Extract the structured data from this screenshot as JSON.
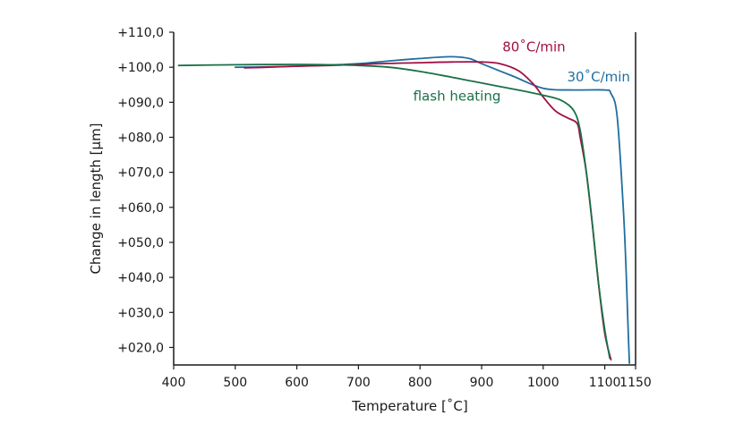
{
  "chart_data": {
    "type": "line",
    "xlabel": "Temperature [˚C]",
    "ylabel": "Change in length [µm]",
    "xlim": [
      400,
      1150
    ],
    "ylim": [
      15,
      110
    ],
    "x_ticks": [
      400,
      500,
      600,
      700,
      800,
      900,
      1000,
      1100,
      1150
    ],
    "x_tick_labels": [
      "400",
      "500",
      "600",
      "700",
      "800",
      "900",
      "1000",
      "1100",
      "1150"
    ],
    "y_ticks": [
      20,
      30,
      40,
      50,
      60,
      70,
      80,
      90,
      100,
      110
    ],
    "y_tick_labels": [
      "+020,0",
      "+030,0",
      "+040,0",
      "+050,0",
      "+060,0",
      "+070,0",
      "+080,0",
      "+090,0",
      "+100,0",
      "+110,0"
    ],
    "grid": false,
    "series": [
      {
        "name": "30˚C/min",
        "color": "#1f6fa0",
        "points": [
          [
            500,
            100.0
          ],
          [
            550,
            100.1
          ],
          [
            600,
            100.3
          ],
          [
            650,
            100.6
          ],
          [
            700,
            101.0
          ],
          [
            750,
            101.8
          ],
          [
            800,
            102.5
          ],
          [
            850,
            103.0
          ],
          [
            880,
            102.5
          ],
          [
            900,
            101.0
          ],
          [
            950,
            97.5
          ],
          [
            1000,
            94.0
          ],
          [
            1050,
            93.5
          ],
          [
            1100,
            93.5
          ],
          [
            1110,
            92.5
          ],
          [
            1120,
            86.0
          ],
          [
            1130,
            60.0
          ],
          [
            1135,
            40.0
          ],
          [
            1138,
            25.0
          ],
          [
            1140,
            15.5
          ]
        ]
      },
      {
        "name": "80˚C/min",
        "color": "#a01045",
        "points": [
          [
            515,
            99.8
          ],
          [
            550,
            100.0
          ],
          [
            600,
            100.3
          ],
          [
            650,
            100.5
          ],
          [
            700,
            100.8
          ],
          [
            750,
            101.1
          ],
          [
            800,
            101.3
          ],
          [
            850,
            101.5
          ],
          [
            900,
            101.5
          ],
          [
            930,
            101.0
          ],
          [
            960,
            99.0
          ],
          [
            985,
            95.0
          ],
          [
            1000,
            91.5
          ],
          [
            1020,
            87.5
          ],
          [
            1040,
            85.5
          ],
          [
            1055,
            84.0
          ],
          [
            1060,
            80.0
          ],
          [
            1070,
            70.0
          ],
          [
            1080,
            55.0
          ],
          [
            1090,
            38.0
          ],
          [
            1100,
            24.0
          ],
          [
            1110,
            16.5
          ]
        ]
      },
      {
        "name": "flash heating",
        "color": "#1a7048",
        "points": [
          [
            408,
            100.5
          ],
          [
            500,
            100.7
          ],
          [
            600,
            100.8
          ],
          [
            650,
            100.7
          ],
          [
            700,
            100.5
          ],
          [
            750,
            100.0
          ],
          [
            800,
            98.8
          ],
          [
            850,
            97.2
          ],
          [
            900,
            95.5
          ],
          [
            950,
            93.8
          ],
          [
            1000,
            92.0
          ],
          [
            1030,
            90.5
          ],
          [
            1050,
            87.5
          ],
          [
            1060,
            82.0
          ],
          [
            1070,
            70.0
          ],
          [
            1080,
            55.0
          ],
          [
            1090,
            38.0
          ],
          [
            1100,
            25.0
          ],
          [
            1108,
            17.0
          ]
        ]
      }
    ],
    "annotations": [
      {
        "text": "80˚C/min",
        "series": "80˚C/min",
        "x": 985,
        "y": 104.5
      },
      {
        "text": "30˚C/min",
        "series": "30˚C/min",
        "x": 1090,
        "y": 96.0
      },
      {
        "text": "flash heating",
        "series": "flash heating",
        "x": 860,
        "y": 90.5
      }
    ]
  }
}
